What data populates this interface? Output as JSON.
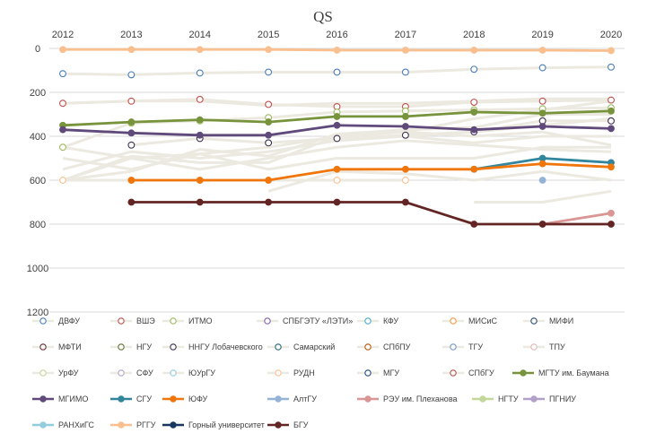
{
  "chart_data": {
    "type": "line",
    "title": "QS",
    "xlabel": "",
    "ylabel": "",
    "x": [
      "2012",
      "2013",
      "2014",
      "2015",
      "2016",
      "2017",
      "2018",
      "2019",
      "2020"
    ],
    "ylim": [
      1200,
      0
    ],
    "yticks": [
      "0",
      "200",
      "400",
      "600",
      "800",
      "1000",
      "1200"
    ],
    "grid": true,
    "legend_position": "bottom",
    "series": [
      {
        "name": "ДВФУ",
        "color": "#4a7ebb",
        "style": "marker",
        "values": [
          115,
          120,
          112,
          108,
          108,
          108,
          95,
          88,
          85
        ]
      },
      {
        "name": "ВШЭ",
        "color": "#c0504d",
        "style": "marker",
        "values": [
          250,
          240,
          232,
          255,
          265,
          265,
          245,
          240,
          235
        ]
      },
      {
        "name": "ИТМО",
        "color": "#9bbb59",
        "style": "marker",
        "values": [
          450,
          340,
          330,
          315,
          290,
          285,
          280,
          275,
          270
        ]
      },
      {
        "name": "СПБГЭТУ «ЛЭТИ»",
        "color": "#8064a2",
        "style": "marker",
        "values": [
          null,
          null,
          null,
          null,
          null,
          null,
          null,
          null,
          null
        ]
      },
      {
        "name": "КФУ",
        "color": "#4bacc6",
        "style": "marker",
        "values": [
          null,
          null,
          null,
          null,
          null,
          null,
          null,
          null,
          null
        ]
      },
      {
        "name": "МИСиС",
        "color": "#f79646",
        "style": "marker",
        "values": [
          null,
          null,
          null,
          null,
          null,
          null,
          null,
          null,
          null
        ]
      },
      {
        "name": "МИФИ",
        "color": "#2c4d75",
        "style": "marker",
        "values": [
          null,
          null,
          null,
          null,
          null,
          null,
          null,
          null,
          null
        ]
      },
      {
        "name": "МФТИ",
        "color": "#772c2a",
        "style": "marker",
        "values": [
          null,
          null,
          null,
          null,
          null,
          null,
          null,
          null,
          null
        ]
      },
      {
        "name": "НГУ",
        "color": "#5f7530",
        "style": "marker",
        "values": [
          null,
          null,
          null,
          null,
          null,
          null,
          null,
          null,
          null
        ]
      },
      {
        "name": "ННГУ Лобачевского",
        "color": "#3f3151",
        "style": "marker",
        "values": [
          null,
          440,
          410,
          430,
          410,
          395,
          380,
          330,
          330
        ]
      },
      {
        "name": "Самарский",
        "color": "#276a7c",
        "style": "marker",
        "values": [
          null,
          null,
          null,
          null,
          null,
          null,
          null,
          null,
          null
        ]
      },
      {
        "name": "СПбПУ",
        "color": "#b65708",
        "style": "marker",
        "values": [
          null,
          null,
          null,
          null,
          null,
          null,
          null,
          null,
          null
        ]
      },
      {
        "name": "ТГУ",
        "color": "#729aca",
        "style": "marker",
        "values": [
          null,
          null,
          null,
          null,
          null,
          null,
          null,
          null,
          null
        ]
      },
      {
        "name": "ТПУ",
        "color": "#e6b8b7",
        "style": "marker",
        "values": [
          null,
          null,
          null,
          null,
          null,
          null,
          null,
          null,
          null
        ]
      },
      {
        "name": "УрФУ",
        "color": "#c3d69b",
        "style": "marker",
        "values": [
          null,
          null,
          null,
          null,
          null,
          null,
          null,
          null,
          null
        ]
      },
      {
        "name": "СФУ",
        "color": "#b3a2c7",
        "style": "marker",
        "values": [
          null,
          null,
          null,
          null,
          null,
          null,
          null,
          null,
          null
        ]
      },
      {
        "name": "ЮУрГУ",
        "color": "#92cddc",
        "style": "marker",
        "values": [
          null,
          null,
          null,
          null,
          null,
          null,
          null,
          null,
          null
        ]
      },
      {
        "name": "РУДН",
        "color": "#fac090",
        "style": "marker",
        "values": [
          600,
          600,
          600,
          600,
          600,
          600,
          null,
          null,
          null
        ]
      },
      {
        "name": "МГУ",
        "color": "#1f497d",
        "style": "marker",
        "values": [
          null,
          null,
          null,
          null,
          null,
          null,
          null,
          null,
          null
        ]
      },
      {
        "name": "СПбГУ",
        "color": "#c0504d",
        "style": "marker",
        "values": [
          null,
          null,
          null,
          null,
          null,
          null,
          null,
          null,
          null
        ]
      },
      {
        "name": "МГТУ им. Баумана",
        "color": "#77933c",
        "style": "line",
        "values": [
          350,
          335,
          325,
          335,
          310,
          310,
          290,
          295,
          285
        ]
      },
      {
        "name": "МГИМО",
        "color": "#604a7b",
        "style": "line",
        "values": [
          370,
          385,
          395,
          395,
          350,
          355,
          370,
          355,
          365
        ]
      },
      {
        "name": "СГУ",
        "color": "#31859c",
        "style": "line",
        "values": [
          null,
          null,
          null,
          null,
          null,
          null,
          550,
          500,
          520
        ]
      },
      {
        "name": "ЮФУ",
        "color": "#f0750a",
        "style": "line",
        "values": [
          null,
          600,
          600,
          600,
          550,
          550,
          550,
          525,
          540
        ]
      },
      {
        "name": "АлтГУ",
        "color": "#95b3d7",
        "style": "line",
        "values": [
          null,
          null,
          null,
          null,
          null,
          null,
          null,
          600,
          null
        ]
      },
      {
        "name": "РЭУ им. Плеханова",
        "color": "#d99694",
        "style": "line",
        "values": [
          null,
          null,
          null,
          null,
          null,
          null,
          null,
          800,
          750
        ]
      },
      {
        "name": "НГТУ",
        "color": "#c4d79b",
        "style": "line",
        "values": [
          null,
          null,
          null,
          null,
          null,
          null,
          null,
          null,
          null
        ]
      },
      {
        "name": "ПГНИУ",
        "color": "#b1a0c7",
        "style": "line",
        "values": [
          null,
          null,
          null,
          null,
          null,
          null,
          null,
          null,
          null
        ]
      },
      {
        "name": "РАНХиГС",
        "color": "#93cddd",
        "style": "line",
        "values": [
          null,
          null,
          null,
          null,
          null,
          null,
          null,
          null,
          null
        ]
      },
      {
        "name": "РГГУ",
        "color": "#fabf8f",
        "style": "line",
        "values": [
          5,
          5,
          5,
          5,
          8,
          8,
          8,
          8,
          10
        ]
      },
      {
        "name": "Горный университет",
        "color": "#17375e",
        "style": "line",
        "values": [
          null,
          null,
          null,
          null,
          null,
          null,
          null,
          null,
          null
        ]
      },
      {
        "name": "БГУ",
        "color": "#632523",
        "style": "line",
        "values": [
          null,
          700,
          700,
          700,
          700,
          700,
          800,
          800,
          800
        ]
      }
    ]
  }
}
